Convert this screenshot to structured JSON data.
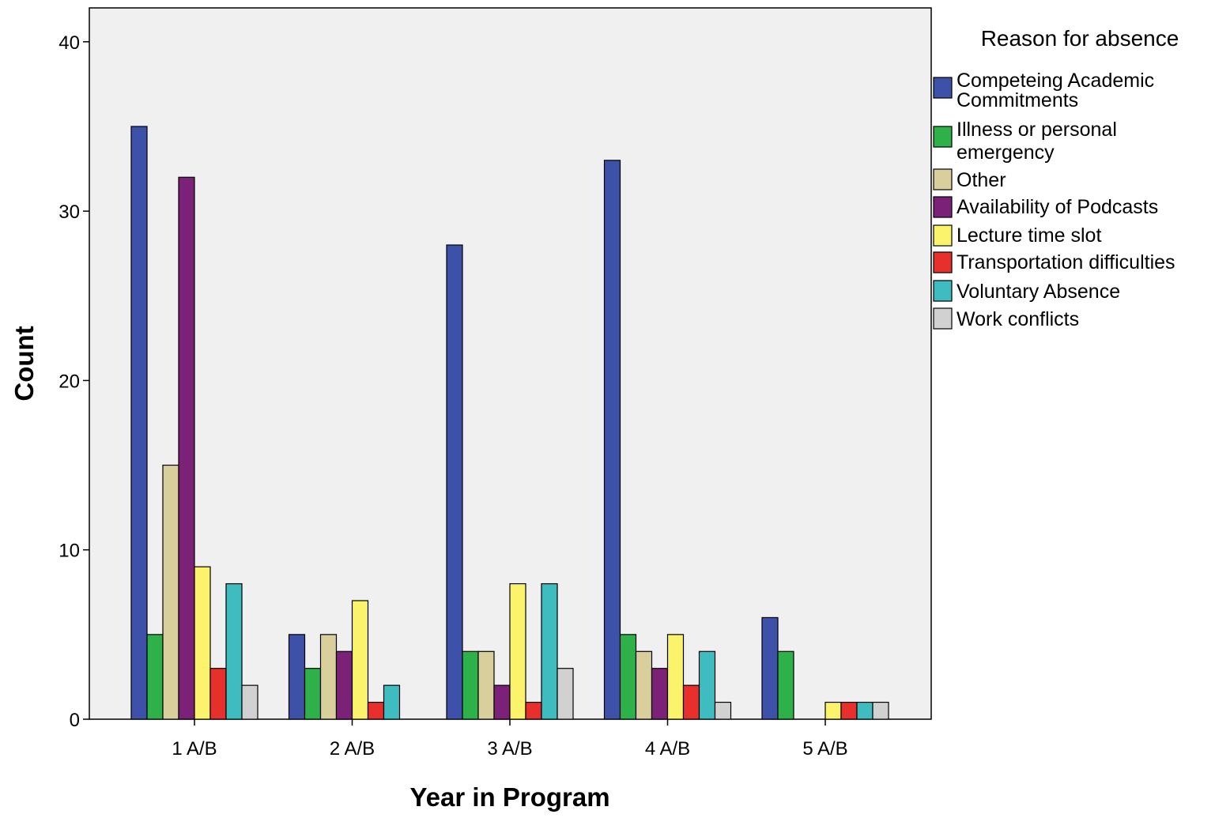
{
  "chart_data": {
    "type": "bar",
    "title": "",
    "xlabel": "Year in Program",
    "ylabel": "Count",
    "ylim": [
      0,
      42
    ],
    "yticks": [
      0,
      10,
      20,
      30,
      40
    ],
    "grid": false,
    "legend_title": "Reason for absence",
    "legend_position": "right",
    "categories": [
      "1 A/B",
      "2 A/B",
      "3 A/B",
      "4 A/B",
      "5 A/B"
    ],
    "series": [
      {
        "name": "Competeing Academic Commitments",
        "color": "#3d51a8",
        "values": [
          35,
          5,
          28,
          33,
          6
        ]
      },
      {
        "name": "Illness or personal emergency",
        "color": "#2fb14a",
        "values": [
          5,
          3,
          4,
          5,
          4
        ]
      },
      {
        "name": "Other",
        "color": "#d8cf9d",
        "values": [
          15,
          5,
          4,
          4,
          0
        ]
      },
      {
        "name": "Availability of Podcasts",
        "color": "#7b2178",
        "values": [
          32,
          4,
          2,
          3,
          0
        ]
      },
      {
        "name": "Lecture time slot",
        "color": "#faf36b",
        "values": [
          9,
          7,
          8,
          5,
          1
        ]
      },
      {
        "name": "Transportation difficulties",
        "color": "#e7302c",
        "values": [
          3,
          1,
          1,
          2,
          1
        ]
      },
      {
        "name": "Voluntary Absence",
        "color": "#3fbcbf",
        "values": [
          8,
          2,
          8,
          4,
          1
        ]
      },
      {
        "name": "Work conflicts",
        "color": "#d1d1d1",
        "values": [
          2,
          0,
          3,
          1,
          1
        ]
      }
    ]
  },
  "legend_lines": [
    [
      "Competeing Academic",
      "Commitments"
    ],
    [
      "Illness or personal",
      "emergency"
    ],
    [
      "Other"
    ],
    [
      "Availability of Podcasts"
    ],
    [
      "Lecture time slot"
    ],
    [
      "Transportation difficulties"
    ],
    [
      "Voluntary Absence"
    ],
    [
      "Work conflicts"
    ]
  ]
}
